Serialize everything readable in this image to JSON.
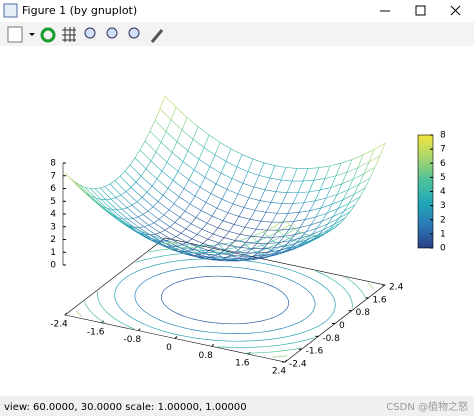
{
  "window": {
    "title": "Figure 1 (by gnuplot)"
  },
  "chart_data": {
    "type": "surface",
    "xlim": [
      -2.4,
      2.4
    ],
    "ylim": [
      -2.4,
      2.4
    ],
    "zlim": [
      0,
      8
    ],
    "xticks": [
      -2.4,
      -1.6,
      -0.8,
      0,
      0.8,
      1.6,
      2.4
    ],
    "yticks": [
      -2.4,
      -1.6,
      -0.8,
      0,
      0.8,
      1.6,
      2.4
    ],
    "zticks": [
      0,
      1,
      2,
      3,
      4,
      5,
      6,
      7,
      8
    ],
    "colorbar": {
      "ticks": [
        0,
        1,
        2,
        3,
        4,
        5,
        6,
        7,
        8
      ],
      "colors": [
        "#2c3f86",
        "#2a78b5",
        "#22a7b8",
        "#4dc29a",
        "#a9d66c",
        "#f2e53f"
      ]
    }
  },
  "status": "view: 60.0000, 30.0000  scale: 1.00000, 1.00000",
  "watermark": "CSDN @植物之怒"
}
